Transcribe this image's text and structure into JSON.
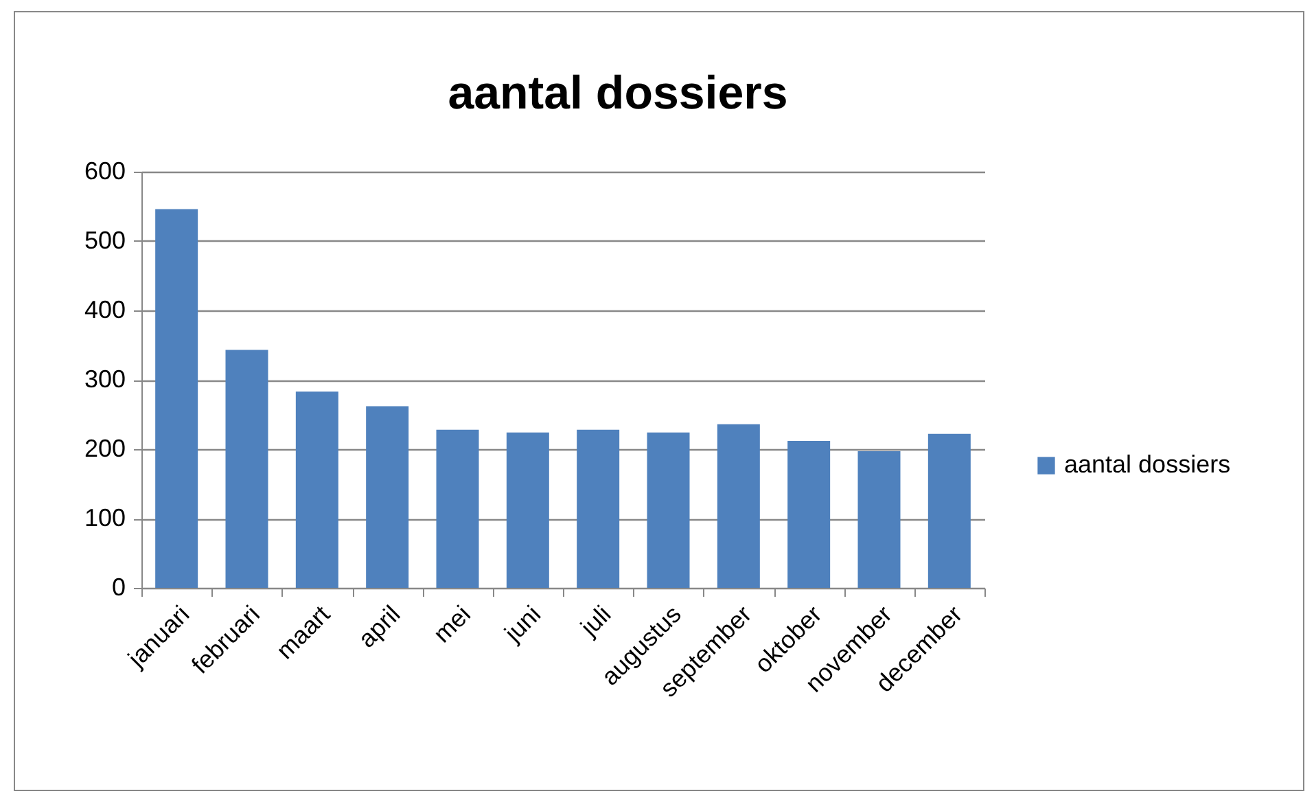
{
  "chart_data": {
    "type": "bar",
    "title": "aantal dossiers",
    "categories": [
      "januari",
      "februari",
      "maart",
      "april",
      "mei",
      "juni",
      "juli",
      "augustus",
      "september",
      "oktober",
      "november",
      "december"
    ],
    "series": [
      {
        "name": "aantal dossiers",
        "color": "#4f81bd",
        "values": [
          546,
          343,
          283,
          262,
          228,
          224,
          228,
          224,
          236,
          212,
          197,
          222
        ]
      }
    ],
    "ylim": [
      0,
      600
    ],
    "yticks": [
      0,
      100,
      200,
      300,
      400,
      500,
      600
    ],
    "grid": "y",
    "legend": "right"
  }
}
